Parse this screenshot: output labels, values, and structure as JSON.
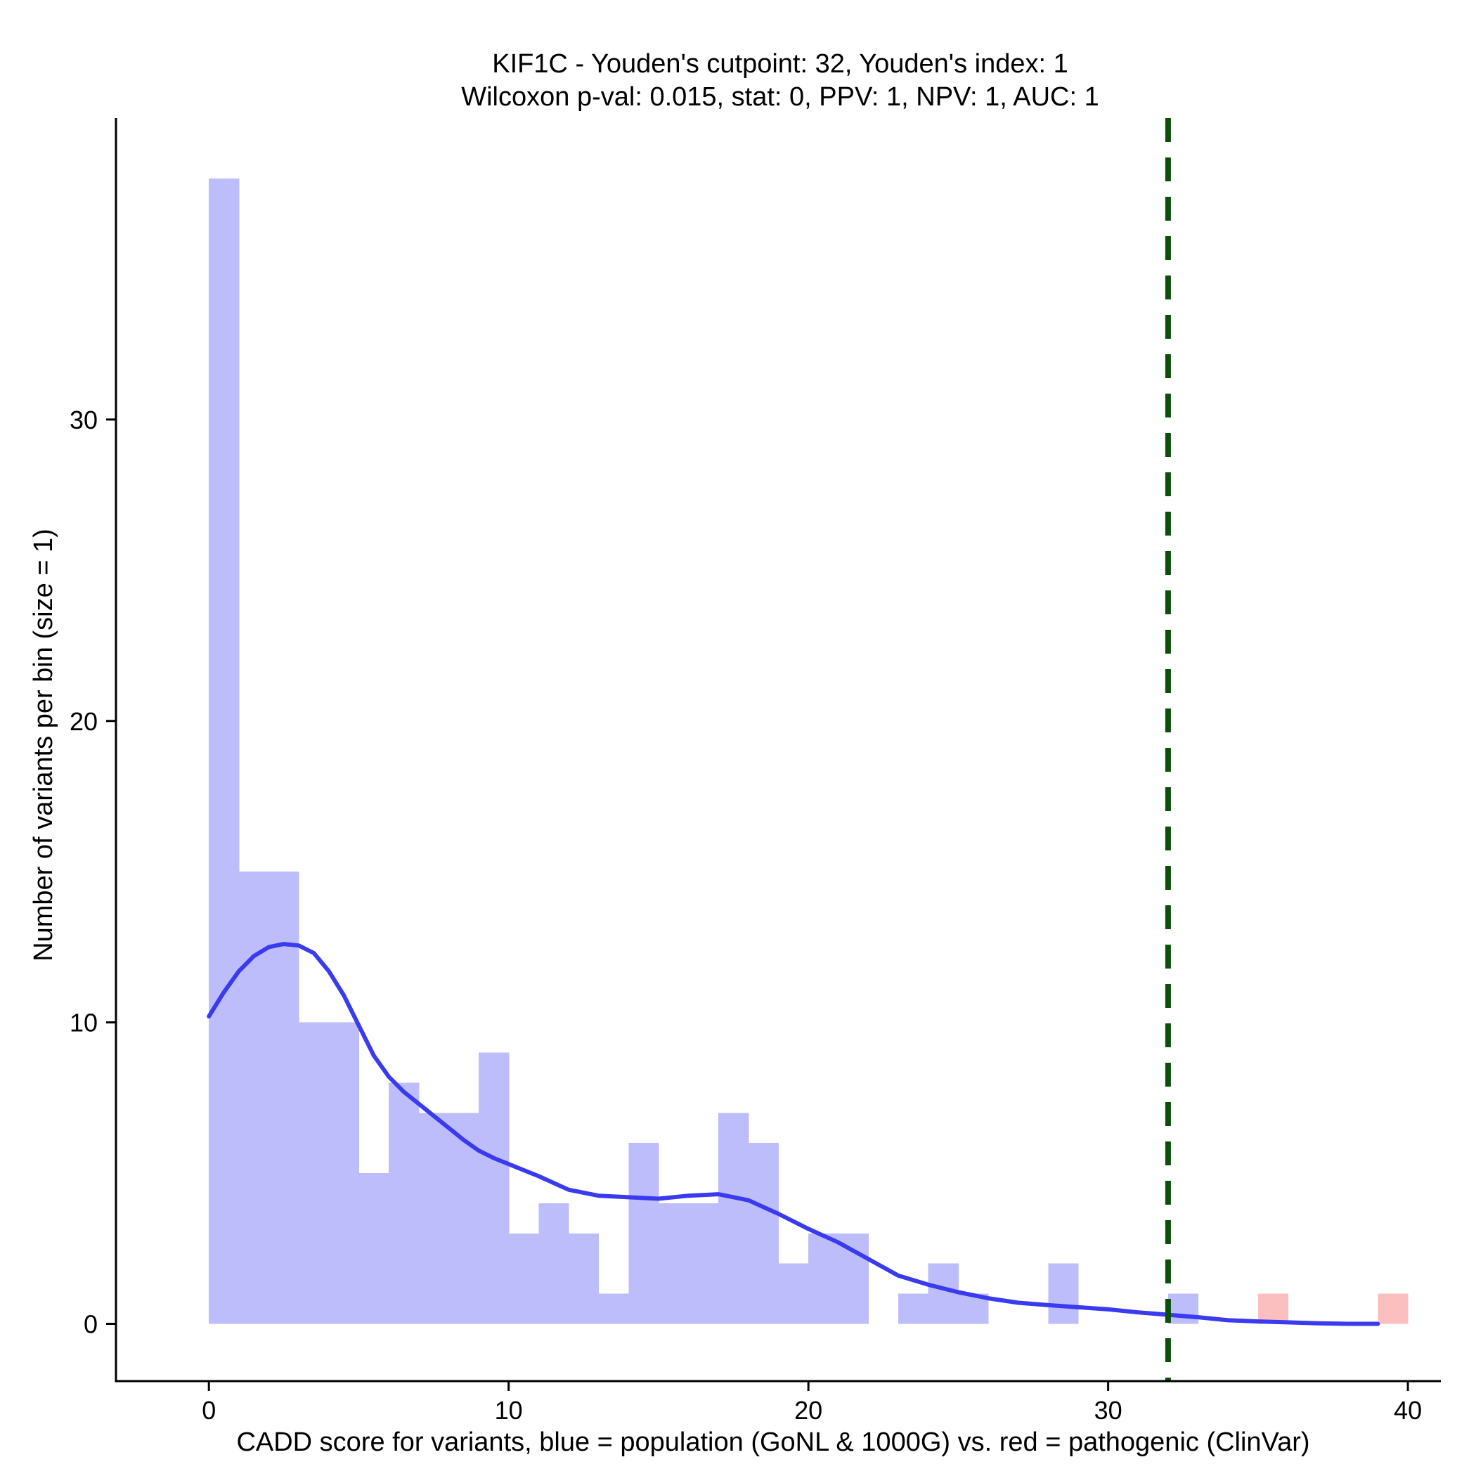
{
  "chart_data": {
    "type": "bar",
    "title_line1": "KIF1C - Youden's cutpoint: 32, Youden's index: 1",
    "title_line2": "Wilcoxon p-val: 0.015, stat: 0, PPV: 1, NPV: 1, AUC: 1",
    "xlabel": "CADD score for variants, blue = population (GoNL & 1000G) vs. red = pathogenic (ClinVar)",
    "ylabel": "Number of variants per bin (size = 1)",
    "xlim": [
      -3.1,
      41.1
    ],
    "ylim": [
      -1.9,
      40
    ],
    "x_ticks": [
      0,
      10,
      20,
      30,
      40
    ],
    "y_ticks": [
      0,
      10,
      20,
      30
    ],
    "bin_size": 1,
    "grid": false,
    "colors": {
      "population": "#bdbdfb",
      "pathogenic": "#fcbfbf",
      "density": "#3a3af0",
      "cutpoint": "#0a500a"
    },
    "series": [
      {
        "name": "population",
        "bins": [
          {
            "x0": 0,
            "count": 38
          },
          {
            "x0": 1,
            "count": 15
          },
          {
            "x0": 2,
            "count": 15
          },
          {
            "x0": 3,
            "count": 10
          },
          {
            "x0": 4,
            "count": 10
          },
          {
            "x0": 5,
            "count": 5
          },
          {
            "x0": 6,
            "count": 8
          },
          {
            "x0": 7,
            "count": 7
          },
          {
            "x0": 8,
            "count": 7
          },
          {
            "x0": 9,
            "count": 9
          },
          {
            "x0": 10,
            "count": 3
          },
          {
            "x0": 11,
            "count": 4
          },
          {
            "x0": 12,
            "count": 3
          },
          {
            "x0": 13,
            "count": 1
          },
          {
            "x0": 14,
            "count": 6
          },
          {
            "x0": 15,
            "count": 4
          },
          {
            "x0": 16,
            "count": 4
          },
          {
            "x0": 17,
            "count": 7
          },
          {
            "x0": 18,
            "count": 6
          },
          {
            "x0": 19,
            "count": 2
          },
          {
            "x0": 20,
            "count": 3
          },
          {
            "x0": 21,
            "count": 3
          },
          {
            "x0": 23,
            "count": 1
          },
          {
            "x0": 24,
            "count": 2
          },
          {
            "x0": 25,
            "count": 1
          },
          {
            "x0": 28,
            "count": 2
          },
          {
            "x0": 32,
            "count": 1
          }
        ]
      },
      {
        "name": "pathogenic",
        "bins": [
          {
            "x0": 35,
            "count": 1
          },
          {
            "x0": 39,
            "count": 1
          }
        ]
      }
    ],
    "density_curve": {
      "x": [
        0,
        0.5,
        1,
        1.5,
        2,
        2.5,
        3,
        3.5,
        4,
        4.5,
        5,
        5.5,
        6,
        6.5,
        7,
        7.5,
        8,
        8.5,
        9,
        9.5,
        10,
        11,
        12,
        13,
        14,
        15,
        16,
        17,
        18,
        19,
        20,
        21,
        22,
        23,
        24,
        25,
        26,
        27,
        28,
        29,
        30,
        31,
        32,
        33,
        34,
        35,
        36,
        37,
        38,
        39
      ],
      "y": [
        10.2,
        11.0,
        11.7,
        12.2,
        12.5,
        12.6,
        12.55,
        12.3,
        11.7,
        10.9,
        9.9,
        8.9,
        8.2,
        7.7,
        7.3,
        6.9,
        6.5,
        6.1,
        5.75,
        5.5,
        5.3,
        4.9,
        4.45,
        4.25,
        4.2,
        4.15,
        4.25,
        4.3,
        4.1,
        3.65,
        3.15,
        2.7,
        2.15,
        1.6,
        1.3,
        1.05,
        0.85,
        0.7,
        0.62,
        0.55,
        0.48,
        0.38,
        0.3,
        0.22,
        0.12,
        0.08,
        0.05,
        0.02,
        0.0,
        0.0
      ]
    },
    "cutpoint": 32
  }
}
